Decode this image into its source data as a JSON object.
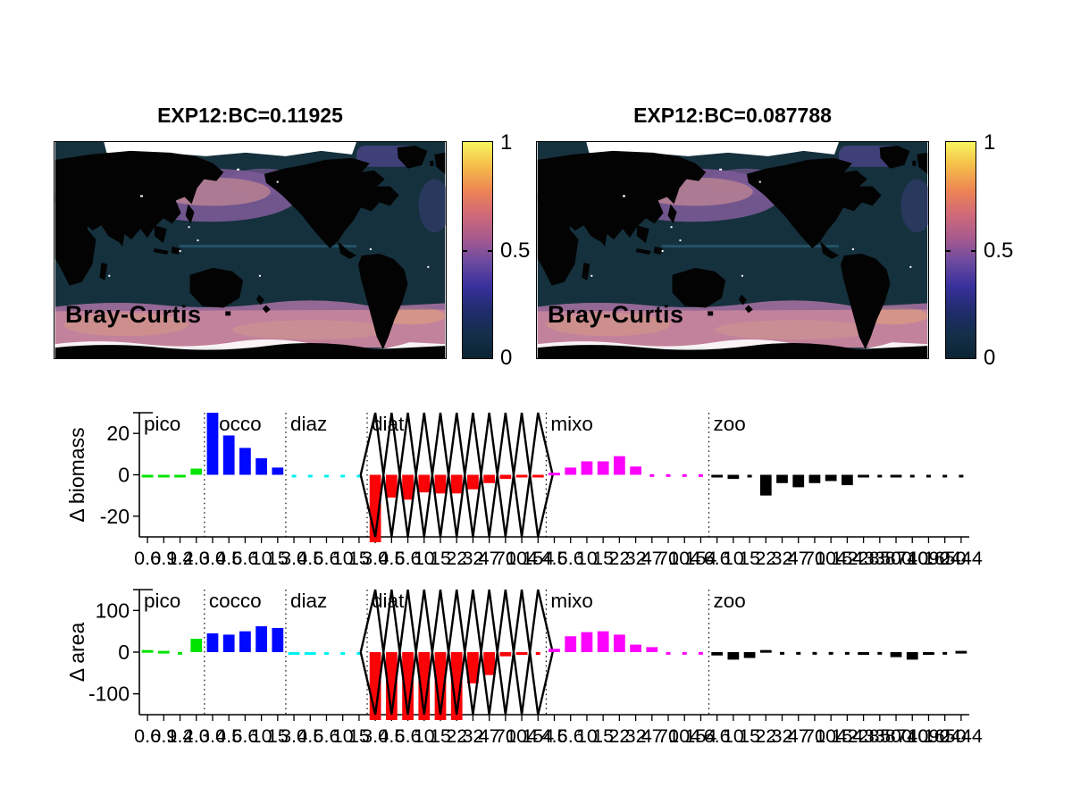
{
  "maps": {
    "left": {
      "title": "EXP12:BC=0.11925",
      "overlay_label": "Bray-Curtis",
      "colorbar_ticks": [
        "1",
        "0.5",
        "0"
      ]
    },
    "right": {
      "title": "EXP12:BC=0.087788",
      "overlay_label": "Bray-Curtis",
      "colorbar_ticks": [
        "1",
        "0.5",
        "0"
      ]
    },
    "land_color": "#030303",
    "ocean_low_color": "#15313d",
    "southern_band_color": "#c2829b",
    "north_pacific_color": "#7b5a96",
    "missing_data_color": "#ffffff"
  },
  "colorbar": {
    "min": 0,
    "mid": 0.5,
    "max": 1,
    "gradient_top_to_bottom": [
      "#f8f55e",
      "#f5bc49",
      "#ee8553",
      "#d06a77",
      "#a85a8e",
      "#6b4aa0",
      "#39309c",
      "#202c6e",
      "#132f49",
      "#0c2433"
    ]
  },
  "chart_data": [
    {
      "type": "bar",
      "ylabel": "Δ biomass",
      "ylim": [
        -30,
        30
      ],
      "yticks": [
        "20",
        "0",
        "-20"
      ],
      "ytick_values": [
        20,
        0,
        -20
      ],
      "grid": false,
      "groups": [
        {
          "label": "pico",
          "color": "#00e400",
          "x_ticks": [
            "0.6",
            "0.9",
            "1.4",
            "2.0"
          ],
          "values": [
            -0.5,
            -0.7,
            -0.7,
            3
          ]
        },
        {
          "label": "cocco",
          "color": "#0008ff",
          "x_ticks": [
            "3.0",
            "4.5",
            "6.6",
            "10",
            "15"
          ],
          "values": [
            30,
            19,
            13,
            8,
            3.5
          ]
        },
        {
          "label": "diaz",
          "color": "#00f0f0",
          "x_ticks": [
            "3.0",
            "4.5",
            "6.6",
            "10",
            "15"
          ],
          "values": [
            -0.3,
            -0.3,
            -0.3,
            -0.3,
            -0.3
          ]
        },
        {
          "label": "diat",
          "color": "#fb0207",
          "x_ticks": [
            "3.0",
            "4.5",
            "6.6",
            "10",
            "15",
            "22",
            "32",
            "47",
            "70",
            "104",
            "154"
          ],
          "values": [
            -35,
            -11,
            -12,
            -8.5,
            -9,
            -9,
            -7,
            -4,
            -2,
            -1,
            -0.6
          ],
          "overlay": "black-zigzag"
        },
        {
          "label": "mixo",
          "color": "#fb02fb",
          "x_ticks": [
            "4.5",
            "6.6",
            "10",
            "15",
            "22",
            "32",
            "47",
            "70",
            "104",
            "154"
          ],
          "values": [
            1,
            3.5,
            6.5,
            6.5,
            9,
            4,
            0.3,
            0.3,
            0.3,
            0.3
          ]
        },
        {
          "label": "zoo",
          "color": "#000000",
          "x_ticks": [
            "6.6",
            "10",
            "15",
            "22",
            "32",
            "47",
            "70",
            "104",
            "154",
            "228",
            "338",
            "500",
            "740",
            "1090",
            "1650",
            "2444"
          ],
          "values": [
            -1,
            -2,
            -0.3,
            -10,
            -4,
            -6,
            -4,
            -3,
            -5,
            -1,
            -0.3,
            -1,
            -0.3,
            -0.3,
            -0.3,
            -0.3
          ]
        }
      ]
    },
    {
      "type": "bar",
      "ylabel": "Δ area",
      "ylim": [
        -150,
        150
      ],
      "yticks": [
        "100",
        "0",
        "-100"
      ],
      "ytick_values": [
        100,
        0,
        -100
      ],
      "grid": false,
      "groups": [
        {
          "label": "pico",
          "color": "#00e400",
          "x_ticks": [
            "0.6",
            "0.9",
            "1.4",
            "2.0"
          ],
          "values": [
            5,
            3,
            0.3,
            32
          ]
        },
        {
          "label": "cocco",
          "color": "#0008ff",
          "x_ticks": [
            "3.0",
            "4.5",
            "6.6",
            "10",
            "15"
          ],
          "values": [
            45,
            42,
            50,
            62,
            58
          ]
        },
        {
          "label": "diaz",
          "color": "#00f0f0",
          "x_ticks": [
            "3.0",
            "4.5",
            "6.6",
            "10",
            "15"
          ],
          "values": [
            -3,
            -5,
            -0.3,
            -0.3,
            -0.3
          ]
        },
        {
          "label": "diat",
          "color": "#fb0207",
          "x_ticks": [
            "3.0",
            "4.5",
            "6.6",
            "10",
            "15",
            "22",
            "32",
            "47",
            "70",
            "104",
            "154"
          ],
          "values": [
            -165,
            -165,
            -165,
            -165,
            -165,
            -165,
            -75,
            -55,
            -10,
            -3,
            -0.3
          ],
          "overlay": "black-zigzag"
        },
        {
          "label": "mixo",
          "color": "#fb02fb",
          "x_ticks": [
            "4.5",
            "6.6",
            "10",
            "15",
            "22",
            "32",
            "47",
            "70",
            "104",
            "154"
          ],
          "values": [
            8,
            38,
            48,
            50,
            42,
            18,
            12,
            0.3,
            0.3,
            0.3
          ]
        },
        {
          "label": "zoo",
          "color": "#000000",
          "x_ticks": [
            "6.6",
            "10",
            "15",
            "22",
            "32",
            "47",
            "70",
            "104",
            "154",
            "228",
            "338",
            "500",
            "740",
            "1090",
            "1650",
            "2444"
          ],
          "values": [
            -8,
            -18,
            -14,
            5,
            0.3,
            0.3,
            0.3,
            0.3,
            0.3,
            -4,
            0.3,
            -12,
            -18,
            -5,
            0.3,
            3
          ]
        }
      ]
    }
  ]
}
